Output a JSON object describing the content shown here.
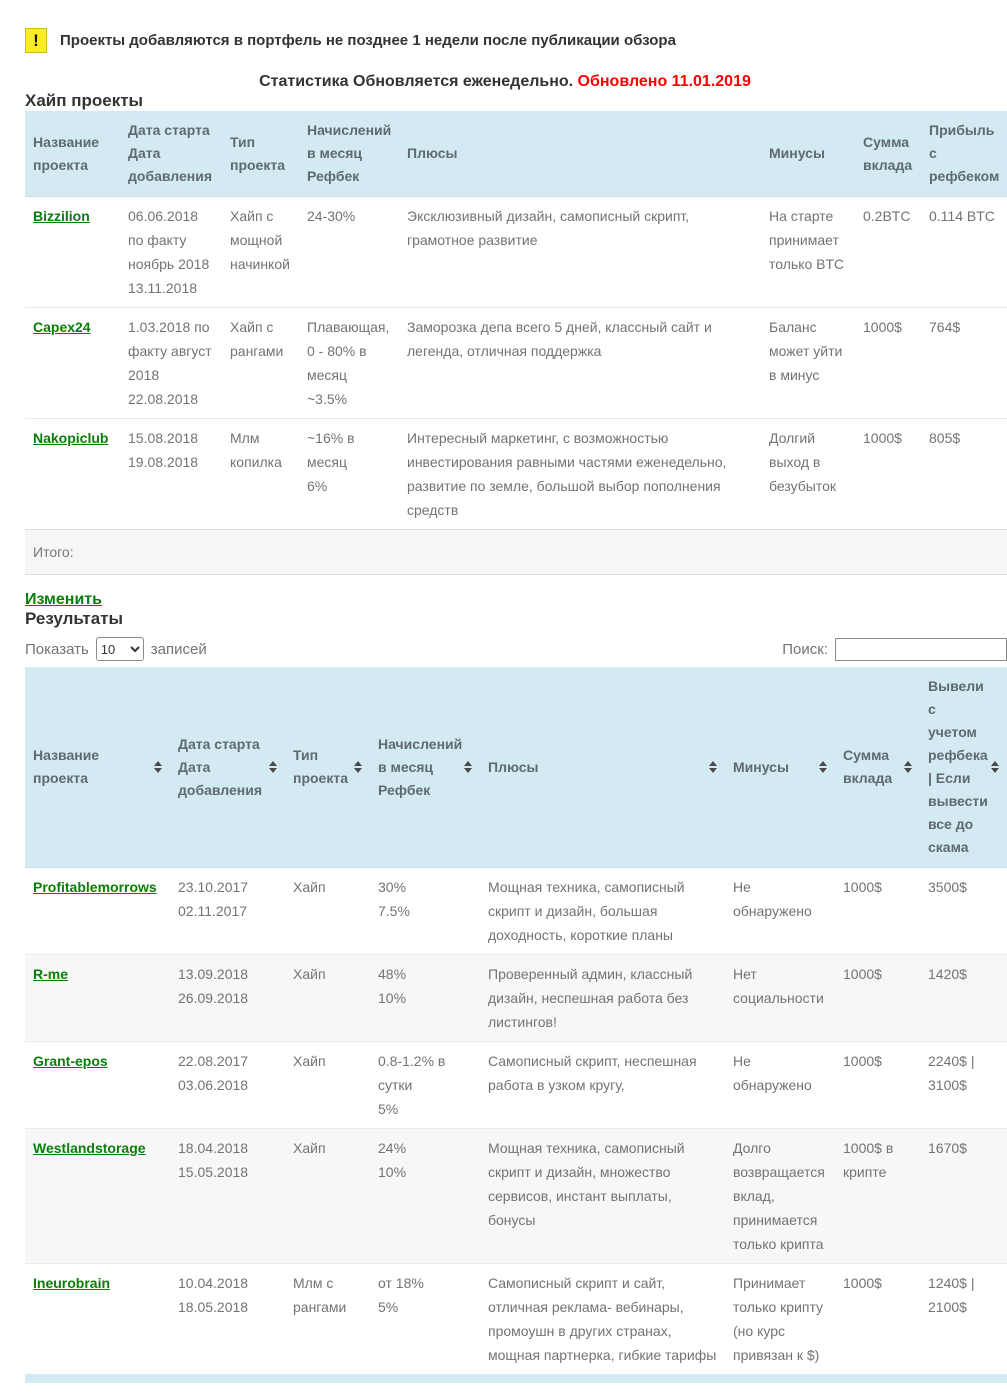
{
  "colors": {
    "head-bg": "#d4eaf2",
    "green": "#0a7d0a",
    "red": "#fe0000",
    "yellow": "#f8ec24"
  },
  "notice": {
    "icon": "exclamation-icon",
    "text": "Проекты добавляются в портфель не позднее 1 недели после публикации обзора"
  },
  "stats_line": {
    "text": "Статистика Обновляется еженедельно.",
    "updated": "Обновлено 11.01.2019"
  },
  "portfolio": {
    "title": "Хайп проекты",
    "columns": [
      "Название проекта",
      "Дата старта Дата добавления",
      "Тип проекта",
      "Начислений в месяц Рефбек",
      "Плюсы",
      "Минусы",
      "Сумма вклада",
      "Прибыль с рефбеком"
    ],
    "keys": [
      "name",
      "dates",
      "type",
      "rate",
      "pros",
      "cons",
      "deposit",
      "profit"
    ],
    "rows": [
      {
        "name": "Bizzilion",
        "dates": "06.06.2018 по факту ноябрь 2018\n13.11.2018",
        "type": "Хайп с мощной начинкой",
        "rate": "24-30%",
        "pros": "Эксклюзивный дизайн, самописный скрипт, грамотное развитие",
        "cons": "На старте принимает только BTC",
        "deposit": "0.2BTC",
        "profit": "0.114 BTC"
      },
      {
        "name": "Capex24",
        "dates": "1.03.2018 по факту август 2018\n22.08.2018",
        "type": "Хайп с рангами",
        "rate": "Плавающая, 0 - 80% в месяц\n~3.5%",
        "pros": "Заморозка депа всего 5 дней, классный сайт и легенда, отличная поддержка",
        "cons": "Баланс может уйти в минус",
        "deposit": "1000$",
        "profit": "764$"
      },
      {
        "name": "Nakopiclub",
        "dates": "15.08.2018\n19.08.2018",
        "type": "Млм копилка",
        "rate": "~16% в месяц\n6%",
        "pros": "Интересный маркетинг, с возможностью инвестирования равными частями еженедельно, развитие по земле, большой выбор пополнения средств",
        "cons": "Долгий выход в безубыток",
        "deposit": "1000$",
        "profit": "805$"
      }
    ],
    "footer_label": "Итого:",
    "edit_link": "Изменить"
  },
  "results": {
    "title": "Результаты",
    "controls": {
      "show_label": "Показать",
      "show_value": "10",
      "records_label": "записей",
      "search_label": "Поиск:",
      "search_value": ""
    },
    "columns": [
      "Название проекта",
      "Дата старта Дата добавления",
      "Тип проекта",
      "Начислений в месяц Рефбек",
      "Плюсы",
      "Минусы",
      "Сумма вклада",
      "Вывели с учетом рефбека | Если вывести все до скама"
    ],
    "keys": [
      "name",
      "dates",
      "type",
      "rate",
      "pros",
      "cons",
      "deposit",
      "withdrawn"
    ],
    "rows": [
      {
        "name": "Profitablemorrows",
        "dates": "23.10.2017\n02.11.2017",
        "type": "Хайп",
        "rate": "30%\n7.5%",
        "pros": "Мощная техника, самописный скрипт и дизайн, большая доходность, короткие планы",
        "cons": "Не обнаружено",
        "deposit": "1000$",
        "withdrawn": "3500$"
      },
      {
        "name": "R-me",
        "dates": "13.09.2018\n26.09.2018",
        "type": "Хайп",
        "rate": "48%\n10%",
        "pros": "Проверенный админ, классный дизайн, неспешная работа без листингов!",
        "cons": "Нет социальности",
        "deposit": "1000$",
        "withdrawn": "1420$"
      },
      {
        "name": "Grant-epos",
        "dates": "22.08.2017\n03.06.2018",
        "type": "Хайп",
        "rate": "0.8-1.2% в сутки\n5%",
        "pros": "Самописный скрипт, неспешная работа в узком кругу,",
        "cons": "Не обнаружено",
        "deposit": "1000$",
        "withdrawn": "2240$ | 3100$"
      },
      {
        "name": "Westlandstorage",
        "dates": "18.04.2018\n15.05.2018",
        "type": "Хайп",
        "rate": "24%\n10%",
        "pros": "Мощная техника, самописный скрипт и дизайн, множество сервисов, инстант выплаты, бонусы",
        "cons": "Долго возвращается вклад, принимается только крипта",
        "deposit": "1000$ в крипте",
        "withdrawn": "1670$"
      },
      {
        "name": "Ineurobrain",
        "dates": "10.04.2018\n18.05.2018",
        "type": "Млм с рангами",
        "rate": "от 18%\n5%",
        "pros": "Самописный скрипт и сайт, отличная реклама- вебинары, промоушн в других странах, мощная партнерка, гибкие тарифы",
        "cons": "Принимает только крипту (но курс привязан к $)",
        "deposit": "1000$",
        "withdrawn": "1240$ | 2100$"
      }
    ]
  }
}
